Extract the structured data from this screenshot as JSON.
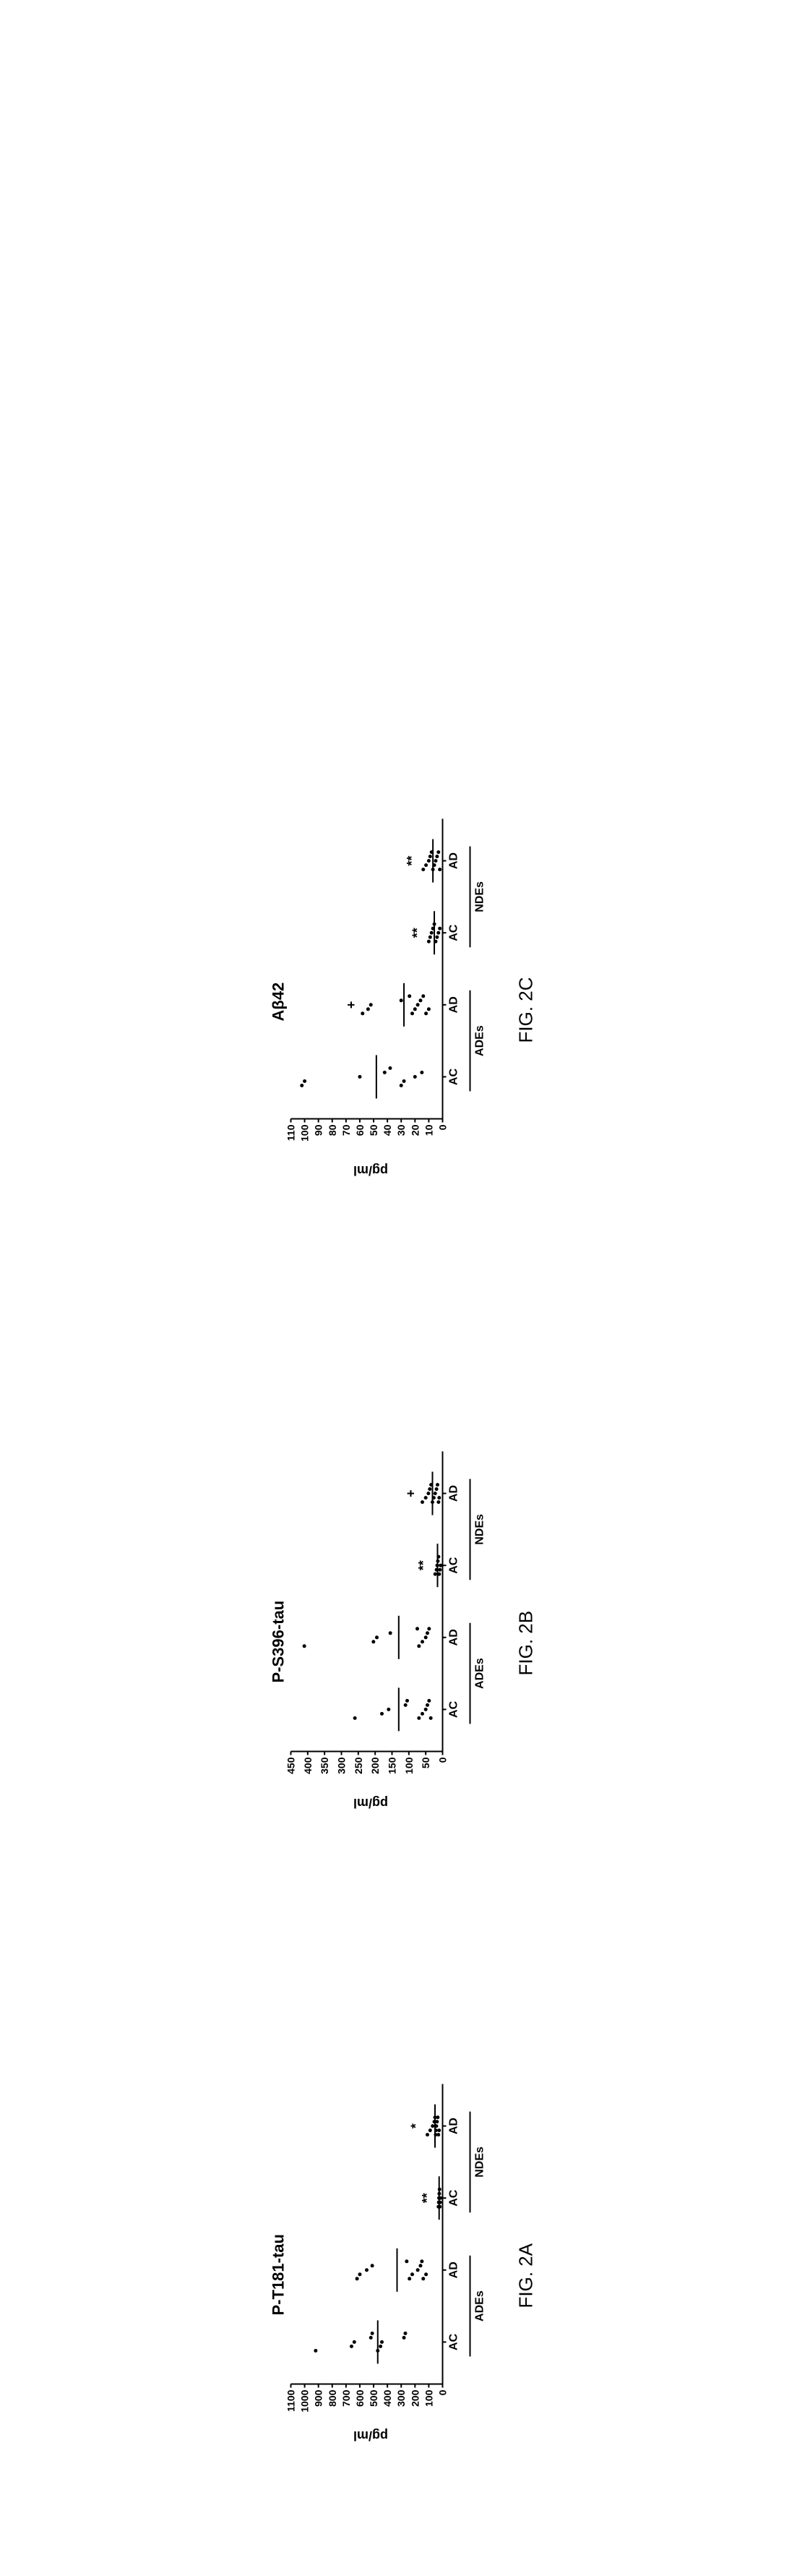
{
  "figure": {
    "background": "#ffffff",
    "axis_color": "#000000",
    "point_color": "#000000",
    "captions": [
      "FIG. 2A",
      "FIG. 2B",
      "FIG. 2C"
    ],
    "ylabel": "pg/ml",
    "x_categories": [
      "AC",
      "AD",
      "AC",
      "AD"
    ],
    "group_labels": [
      "ADEs",
      "NDEs"
    ],
    "panels": [
      {
        "title": "P-T181-tau",
        "ylim": [
          0,
          1100
        ],
        "ytick_step": 100,
        "means": [
          470,
          330,
          25,
          55
        ],
        "sig": [
          "",
          "",
          "**",
          "*"
        ],
        "data": [
          [
            920,
            660,
            640,
            520,
            510,
            470,
            450,
            440,
            280,
            270
          ],
          [
            620,
            600,
            550,
            510,
            260,
            240,
            220,
            180,
            160,
            150,
            140,
            120
          ],
          [
            30,
            28,
            26,
            24,
            22,
            20,
            18,
            16
          ],
          [
            110,
            90,
            72,
            60,
            55,
            50,
            48,
            45,
            40,
            35,
            30,
            25
          ]
        ]
      },
      {
        "title": "P-S396-tau",
        "ylim": [
          0,
          450
        ],
        "ytick_step": 50,
        "means": [
          130,
          130,
          15,
          30
        ],
        "sig": [
          "",
          "",
          "**",
          "+"
        ],
        "data": [
          [
            260,
            180,
            160,
            110,
            105,
            70,
            60,
            50,
            45,
            40,
            35
          ],
          [
            410,
            205,
            195,
            155,
            75,
            70,
            60,
            50,
            45,
            40
          ],
          [
            22,
            18,
            16,
            14,
            12,
            10,
            8,
            6
          ],
          [
            60,
            50,
            42,
            38,
            34,
            30,
            26,
            22,
            18,
            15,
            12,
            10
          ]
        ]
      },
      {
        "title": "Aβ42",
        "ylim": [
          0,
          110
        ],
        "ytick_step": 10,
        "means": [
          48,
          28,
          6,
          7
        ],
        "sig": [
          "",
          "+",
          "**",
          "**"
        ],
        "data": [
          [
            102,
            100,
            60,
            42,
            38,
            30,
            28,
            20,
            15
          ],
          [
            58,
            54,
            52,
            30,
            24,
            22,
            20,
            18,
            16,
            14,
            12,
            10
          ],
          [
            10,
            9,
            8,
            7,
            6,
            5,
            4,
            3,
            2
          ],
          [
            14,
            12,
            10,
            9,
            8,
            7,
            6,
            5,
            4,
            3,
            2
          ]
        ]
      }
    ]
  }
}
